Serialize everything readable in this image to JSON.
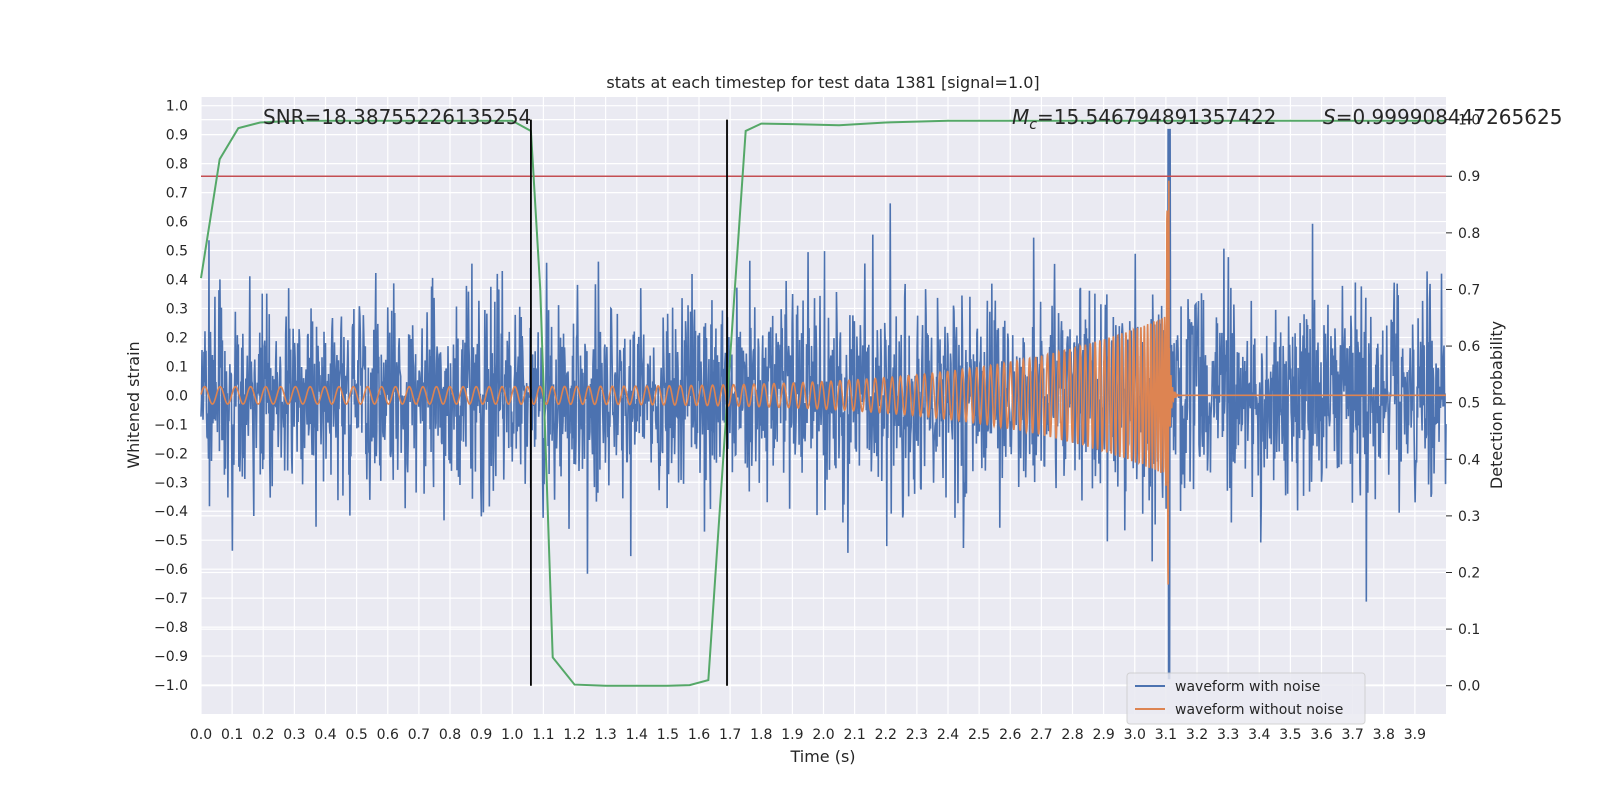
{
  "chart_data": {
    "type": "line",
    "title": "stats at each timestep for test data 1381 [signal=1.0]",
    "xlabel": "Time (s)",
    "ylabel": "Whitened strain",
    "y2label": "Detection probability",
    "xlim": [
      0.0,
      4.0
    ],
    "ylim": [
      -1.1,
      1.03
    ],
    "y2lim": [
      -0.05,
      1.04
    ],
    "x_ticks": [
      0.0,
      0.1,
      0.2,
      0.3,
      0.4,
      0.5,
      0.6,
      0.7,
      0.8,
      0.9,
      1.0,
      1.1,
      1.2,
      1.3,
      1.4,
      1.5,
      1.6,
      1.7,
      1.8,
      1.9,
      2.0,
      2.1,
      2.2,
      2.3,
      2.4,
      2.5,
      2.6,
      2.7,
      2.8,
      2.9,
      3.0,
      3.1,
      3.2,
      3.3,
      3.4,
      3.5,
      3.6,
      3.7,
      3.8,
      3.9
    ],
    "x_tick_labels": [
      "0.0",
      "0.1",
      "0.2",
      "0.3",
      "0.4",
      "0.5",
      "0.6",
      "0.7",
      "0.8",
      "0.9",
      "1.0",
      "1.1",
      "1.2",
      "1.3",
      "1.4",
      "1.5",
      "1.6",
      "1.7",
      "1.8",
      "1.9",
      "2.0",
      "2.1",
      "2.2",
      "2.3",
      "2.4",
      "2.5",
      "2.6",
      "2.7",
      "2.8",
      "2.9",
      "3.0",
      "3.1",
      "3.2",
      "3.3",
      "3.4",
      "3.5",
      "3.6",
      "3.7",
      "3.8",
      "3.9"
    ],
    "y_ticks": [
      1.0,
      0.9,
      0.8,
      0.7,
      0.6,
      0.5,
      0.4,
      0.3,
      0.2,
      0.1,
      0.0,
      -0.1,
      -0.2,
      -0.3,
      -0.4,
      -0.5,
      -0.6,
      -0.7,
      -0.8,
      -0.9,
      -1.0
    ],
    "y_tick_labels": [
      "1.0",
      "0.9",
      "0.8",
      "0.7",
      "0.6",
      "0.5",
      "0.4",
      "0.3",
      "0.2",
      "0.1",
      "0.0",
      "−0.1",
      "−0.2",
      "−0.3",
      "−0.4",
      "−0.5",
      "−0.6",
      "−0.7",
      "−0.8",
      "−0.9",
      "−1.0"
    ],
    "y2_ticks": [
      1.0,
      0.9,
      0.8,
      0.7,
      0.6,
      0.5,
      0.4,
      0.3,
      0.2,
      0.1,
      0.0
    ],
    "y2_tick_labels": [
      "1.0",
      "0.9",
      "0.8",
      "0.7",
      "0.6",
      "0.5",
      "0.4",
      "0.3",
      "0.2",
      "0.1",
      "0.0"
    ],
    "annotations": {
      "snr": "SNR=18.38755226135254",
      "mc_symbol": "M",
      "mc_subscript": "c",
      "mc_value": "=15.546794891357422",
      "s_symbol": "S",
      "s_value": "=0.999908447265625"
    },
    "series": [
      {
        "name": "waveform with noise",
        "color": "#4c72b0",
        "axis": "left",
        "description": "whitened strain, noisy; amplitude envelope ~0.5",
        "noise_amplitude": 0.3,
        "spike_t": 3.11,
        "spike_min": -0.99,
        "spike_max": 0.93
      },
      {
        "name": "waveform without noise",
        "color": "#dd8452",
        "axis": "left",
        "chirp_start_amplitude": 0.03,
        "merger_time": 3.11,
        "merger_peak": 0.87,
        "merger_trough": -0.67,
        "start_period": 0.05,
        "end_period": 0.006
      },
      {
        "name": "detection probability",
        "color": "#55a868",
        "axis": "right",
        "x": [
          0.0,
          0.06,
          0.12,
          0.19,
          0.3,
          0.5,
          0.7,
          0.9,
          1.0,
          1.06,
          1.09,
          1.13,
          1.2,
          1.3,
          1.4,
          1.5,
          1.57,
          1.63,
          1.69,
          1.75,
          1.8,
          1.9,
          2.05,
          2.2,
          2.4,
          2.6,
          3.0,
          3.1,
          3.5,
          3.9,
          4.0
        ],
        "y": [
          0.72,
          0.93,
          0.985,
          0.995,
          0.998,
          0.998,
          0.998,
          0.998,
          0.998,
          0.98,
          0.7,
          0.05,
          0.002,
          0.0,
          0.0,
          0.0,
          0.001,
          0.01,
          0.5,
          0.98,
          0.993,
          0.992,
          0.99,
          0.995,
          0.998,
          0.998,
          0.998,
          0.998,
          0.998,
          0.998,
          0.998
        ]
      }
    ],
    "threshold": {
      "value": 0.9,
      "axis": "right",
      "color": "#c44e52"
    },
    "vlines": [
      1.06,
      1.69
    ],
    "vline_color": "#000000",
    "legend": {
      "position": "bottom-right",
      "entries": [
        "waveform with noise",
        "waveform without noise"
      ]
    },
    "grid": true
  }
}
